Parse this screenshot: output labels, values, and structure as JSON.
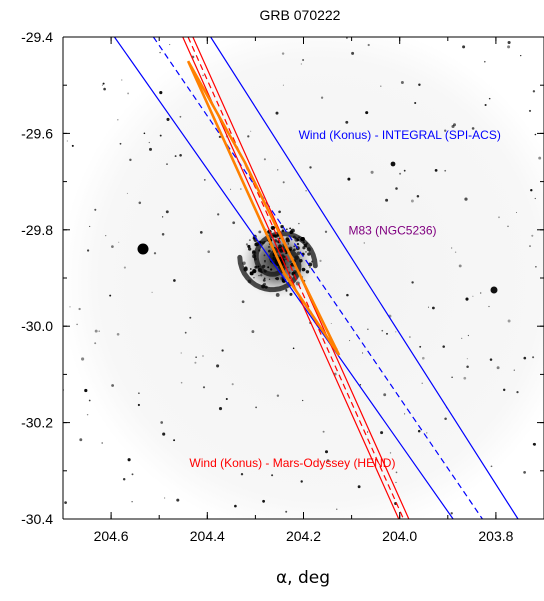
{
  "chart_data": {
    "type": "line",
    "title": "GRB 070222",
    "xlabel": "α, deg",
    "ylabel": "",
    "xlim": [
      204.7,
      203.7
    ],
    "ylim": [
      -30.4,
      -29.4
    ],
    "x_ticks": [
      "204.6",
      "204.4",
      "204.2",
      "204.0",
      "203.8"
    ],
    "y_ticks": [
      "-29.4",
      "-29.6",
      "-29.8",
      "-30.0",
      "-30.2",
      "-30.4"
    ],
    "grid": false,
    "series": [
      {
        "key": "ipn-kw-integral",
        "color": "#0000ff",
        "style": "solid",
        "lines": [
          [
            [
              204.593,
              -29.4
            ],
            [
              203.889,
              -30.4
            ]
          ],
          [
            [
              204.393,
              -29.4
            ],
            [
              203.754,
              -30.4
            ]
          ]
        ]
      },
      {
        "key": "ipn-kw-integral-center",
        "color": "#0000ff",
        "style": "dashed",
        "lines": [
          [
            [
              204.512,
              -29.4
            ],
            [
              203.828,
              -30.4
            ]
          ]
        ]
      },
      {
        "key": "ipn-kw-odyssey",
        "color": "#ff0000",
        "style": "solid",
        "lines": [
          [
            [
              204.451,
              -29.4
            ],
            [
              204.002,
              -30.4
            ]
          ],
          [
            [
              204.43,
              -29.4
            ],
            [
              203.981,
              -30.4
            ]
          ]
        ]
      },
      {
        "key": "ipn-kw-odyssey-center",
        "color": "#ff0000",
        "style": "dashed",
        "lines": [
          [
            [
              204.44,
              -29.4
            ],
            [
              203.992,
              -30.4
            ]
          ]
        ]
      },
      {
        "key": "error-box",
        "color": "#ff8000",
        "style": "solid-thick",
        "polygon": [
          [
            204.44,
            -29.45
          ],
          [
            204.24,
            -29.89
          ],
          [
            204.126,
            -30.06
          ],
          [
            204.322,
            -29.66
          ]
        ]
      }
    ],
    "annotations": [
      {
        "text": "Wind (Konus) - INTEGRAL (SPI-ACS)",
        "x": 204.0,
        "y": -29.612,
        "color": "#0000ff"
      },
      {
        "text": "M83 (NGC5236)",
        "x": 204.015,
        "y": -29.81,
        "color": "#800080"
      },
      {
        "text": "Wind (Konus) - Mars-Odyssey (HEND)",
        "x": 204.223,
        "y": -30.292,
        "color": "#ff0000"
      }
    ],
    "sky_objects": [
      {
        "name": "M83",
        "x": 204.254,
        "y": -29.866
      }
    ]
  }
}
